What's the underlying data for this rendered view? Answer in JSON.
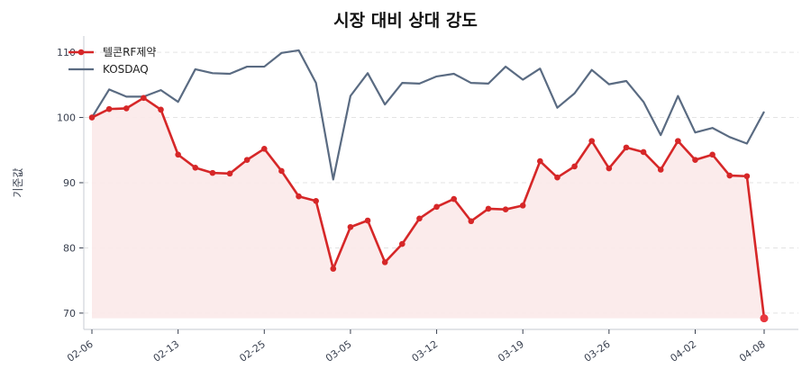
{
  "title": "시장 대비 상대 강도",
  "colors": {
    "stock": "#d62728",
    "stock_fill": "#fbe9e9",
    "kosdaq": "#5a6b82",
    "grid": "#e3e3e3",
    "axis": "#d0d4da"
  },
  "legend": [
    {
      "label": "텔콘RF제약",
      "marker": "line-with-dot"
    },
    {
      "label": "KOSDAQ",
      "marker": "line"
    }
  ],
  "chart_data": {
    "type": "line",
    "title": "시장 대비 상대 강도",
    "xlabel": "",
    "ylabel": "기준값",
    "ylim": [
      67.5,
      112.5
    ],
    "yticks": [
      70,
      80,
      90,
      100,
      110
    ],
    "grid": "horizontal dashed",
    "legend_position": "upper left",
    "xtick_labels": [
      "02-06",
      "02-13",
      "02-25",
      "03-05",
      "03-12",
      "03-19",
      "03-26",
      "04-02",
      "04-08"
    ],
    "xtick_indices": [
      0,
      5,
      10,
      15,
      20,
      25,
      30,
      35,
      39
    ],
    "series": [
      {
        "name": "텔콘RF제약",
        "style": "line+markers, filled to baseline",
        "values": [
          100.0,
          101.3,
          101.4,
          103.0,
          101.2,
          94.3,
          92.3,
          91.5,
          91.4,
          93.5,
          95.2,
          91.8,
          87.9,
          87.2,
          76.8,
          83.2,
          84.2,
          77.8,
          80.6,
          84.5,
          86.3,
          87.5,
          84.1,
          86.0,
          85.9,
          86.5,
          93.3,
          90.8,
          92.5,
          96.4,
          92.2,
          95.4,
          94.7,
          92.0,
          96.4,
          93.5,
          94.3,
          91.1,
          91.0,
          69.2
        ]
      },
      {
        "name": "KOSDAQ",
        "style": "line",
        "values": [
          100.0,
          104.3,
          103.2,
          103.2,
          104.2,
          102.4,
          107.4,
          106.8,
          106.7,
          107.8,
          107.8,
          109.9,
          110.3,
          105.3,
          90.5,
          103.3,
          106.8,
          102.0,
          105.3,
          105.2,
          106.3,
          106.7,
          105.3,
          105.2,
          107.8,
          105.8,
          107.5,
          101.5,
          103.7,
          107.3,
          105.1,
          105.6,
          102.4,
          97.3,
          103.3,
          97.7,
          98.4,
          97.0,
          96.0,
          100.9
        ]
      }
    ]
  }
}
